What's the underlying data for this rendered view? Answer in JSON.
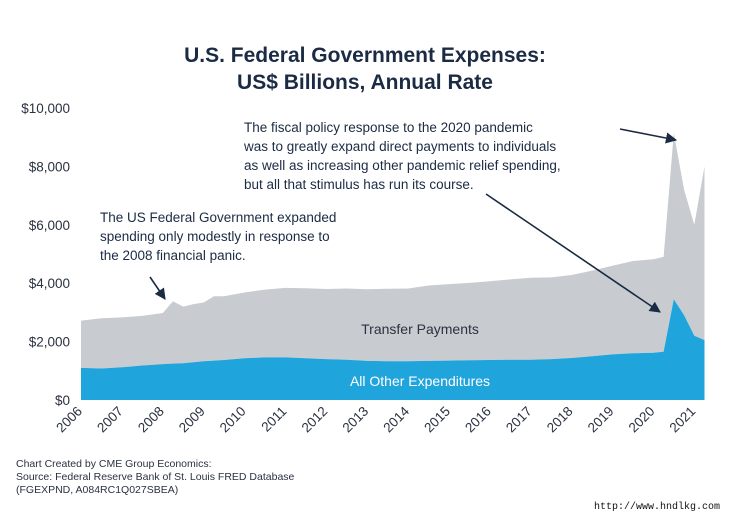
{
  "chart_data": {
    "type": "area",
    "title_lines": [
      "U.S. Federal Government Expenses:",
      "US$ Billions, Annual Rate"
    ],
    "xlabel": "",
    "ylabel": "",
    "ylim": [
      0,
      10000
    ],
    "xlim": [
      2006,
      2021.75
    ],
    "y_ticks": [
      "$0",
      "$2,000",
      "$4,000",
      "$6,000",
      "$8,000",
      "$10,000"
    ],
    "y_tick_values": [
      0,
      2000,
      4000,
      6000,
      8000,
      10000
    ],
    "x_ticks": [
      "2006",
      "2007",
      "2008",
      "2009",
      "2010",
      "2011",
      "2012",
      "2013",
      "2014",
      "2015",
      "2016",
      "2017",
      "2018",
      "2019",
      "2020",
      "2021"
    ],
    "grid": false,
    "stacked": true,
    "colors": {
      "all_other": "#1fa4dc",
      "transfer": "#c8ccd0"
    },
    "series": [
      {
        "name": "All Other Expenditures",
        "x": [
          2006.0,
          2006.5,
          2007.0,
          2007.5,
          2008.0,
          2008.5,
          2009.0,
          2009.5,
          2010.0,
          2010.5,
          2011.0,
          2011.5,
          2012.0,
          2012.5,
          2013.0,
          2013.5,
          2014.0,
          2014.5,
          2015.0,
          2015.5,
          2016.0,
          2016.5,
          2017.0,
          2017.5,
          2018.0,
          2018.5,
          2019.0,
          2019.5,
          2020.0,
          2020.25,
          2020.5,
          2020.75,
          2021.0,
          2021.25
        ],
        "values": [
          1100,
          1080,
          1120,
          1180,
          1230,
          1260,
          1330,
          1370,
          1430,
          1460,
          1460,
          1430,
          1400,
          1380,
          1340,
          1330,
          1330,
          1340,
          1350,
          1360,
          1370,
          1380,
          1380,
          1400,
          1440,
          1500,
          1560,
          1600,
          1620,
          1650,
          3450,
          2900,
          2200,
          2050
        ]
      },
      {
        "name": "Transfer Payments",
        "x": [
          2006.0,
          2006.5,
          2007.0,
          2007.5,
          2008.0,
          2008.25,
          2008.5,
          2008.75,
          2009.0,
          2009.25,
          2009.5,
          2010.0,
          2010.5,
          2011.0,
          2011.5,
          2012.0,
          2012.5,
          2013.0,
          2013.5,
          2014.0,
          2014.5,
          2015.0,
          2015.5,
          2016.0,
          2016.5,
          2017.0,
          2017.5,
          2018.0,
          2018.5,
          2019.0,
          2019.5,
          2020.0,
          2020.25,
          2020.5,
          2020.75,
          2021.0,
          2021.25
        ],
        "values": [
          1620,
          1720,
          1710,
          1700,
          1750,
          2140,
          1940,
          1990,
          2010,
          2200,
          2180,
          2250,
          2320,
          2380,
          2400,
          2400,
          2440,
          2450,
          2480,
          2490,
          2580,
          2620,
          2650,
          2700,
          2750,
          2810,
          2800,
          2840,
          2930,
          3040,
          3160,
          3200,
          3250,
          5690,
          4300,
          3800,
          5950
        ]
      }
    ],
    "series_labels": {
      "transfer": "Transfer Payments",
      "all_other": "All Other Expenditures"
    },
    "annotations": [
      {
        "lines": [
          "The fiscal policy response to the 2020 pandemic",
          "was to greatly expand direct payments to individuals",
          "as well as increasing other pandemic relief spending,",
          "but all that stimulus has run its course."
        ]
      },
      {
        "lines": [
          "The US Federal Government expanded",
          "spending only modestly in response to",
          "the 2008 financial panic."
        ]
      }
    ]
  },
  "footer": {
    "line1": "Chart Created by CME Group Economics:",
    "line2": "Source: Federal Reserve Bank of St. Louis FRED Database",
    "line3": "(FGEXPND, A084RC1Q027SBEA)"
  },
  "watermark": "http://www.hndlkg.com"
}
